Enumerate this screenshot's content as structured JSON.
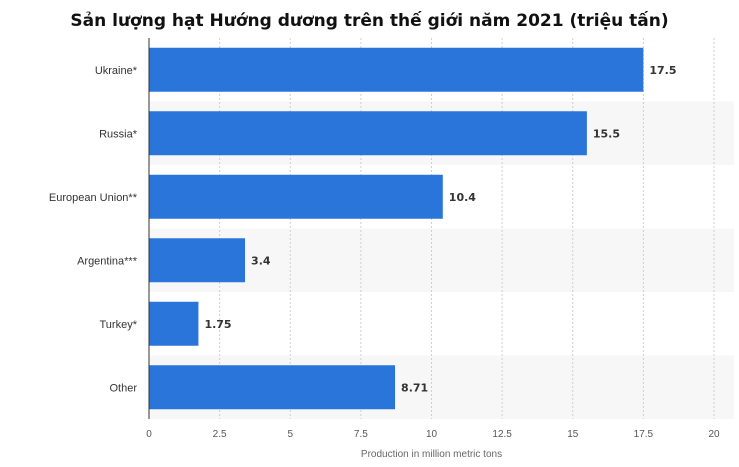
{
  "chart_data": {
    "type": "bar",
    "orientation": "horizontal",
    "title": "Sản lượng hạt Hướng dương trên thế giới năm 2021 (triệu tấn)",
    "categories": [
      "Ukraine*",
      "Russia*",
      "European Union**",
      "Argentina***",
      "Turkey*",
      "Other"
    ],
    "values": [
      17.5,
      15.5,
      10.4,
      3.4,
      1.75,
      8.71
    ],
    "value_labels": [
      "17.5",
      "15.5",
      "10.4",
      "3.4",
      "1.75",
      "8.71"
    ],
    "xlabel": "Production in million metric tons",
    "ylabel": "",
    "xlim": [
      0,
      20
    ],
    "xticks": [
      0,
      2.5,
      5,
      7.5,
      10,
      12.5,
      15,
      17.5,
      20
    ],
    "xtick_labels": [
      "0",
      "2.5",
      "5",
      "7.5",
      "10",
      "12.5",
      "15",
      "17.5",
      "20"
    ],
    "bar_color": "#2a75d9",
    "band_color": "#f7f7f7",
    "grid": true,
    "legend": "none"
  }
}
